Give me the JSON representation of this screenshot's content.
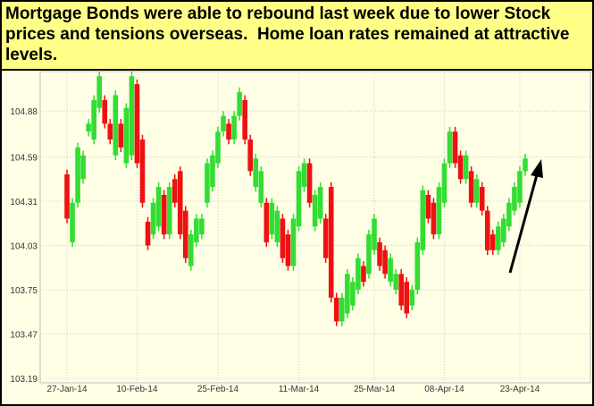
{
  "chart_data": {
    "type": "candlestick",
    "title": "Mortgage Bonds were able to rebound last week due to lower Stock prices and tensions overseas.  Home loan rates remained at attractive levels.",
    "categories": [
      "27-Jan-14",
      null,
      null,
      null,
      null,
      null,
      null,
      null,
      null,
      null,
      null,
      null,
      null,
      "10-Feb-14",
      null,
      null,
      null,
      null,
      null,
      null,
      null,
      null,
      null,
      null,
      null,
      null,
      null,
      null,
      "25-Feb-14",
      null,
      null,
      null,
      null,
      null,
      null,
      null,
      null,
      null,
      null,
      null,
      null,
      null,
      null,
      "11-Mar-14",
      null,
      null,
      null,
      null,
      null,
      null,
      null,
      null,
      null,
      null,
      null,
      null,
      null,
      "25-Mar-14",
      null,
      null,
      null,
      null,
      null,
      null,
      null,
      null,
      null,
      null,
      null,
      null,
      "08-Apr-14",
      null,
      null,
      null,
      null,
      null,
      null,
      null,
      null,
      null,
      null,
      null,
      null,
      null,
      "23-Apr-14",
      null
    ],
    "open": [
      104.48,
      104.05,
      104.3,
      104.45,
      104.75,
      104.7,
      104.9,
      104.95,
      104.8,
      104.6,
      104.8,
      104.55,
      104.6,
      105.05,
      104.7,
      104.18,
      104.1,
      104.15,
      104.35,
      104.1,
      104.45,
      104.5,
      104.25,
      103.9,
      104.05,
      104.1,
      104.3,
      104.4,
      104.55,
      104.75,
      104.8,
      104.7,
      104.85,
      104.95,
      104.7,
      104.4,
      104.3,
      104.3,
      104.1,
      104.05,
      104.2,
      104.1,
      103.9,
      104.15,
      104.4,
      104.55,
      104.15,
      104.2,
      104.2,
      104.4,
      103.7,
      103.55,
      103.6,
      103.65,
      103.75,
      103.9,
      103.85,
      104.0,
      104.05,
      104.0,
      103.8,
      103.75,
      103.85,
      103.8,
      103.65,
      103.75,
      104.0,
      104.35,
      104.3,
      104.1,
      104.3,
      104.55,
      104.75,
      104.6,
      104.45,
      104.5,
      104.3,
      104.4,
      104.25,
      104.1,
      104.0,
      104.05,
      104.15,
      104.25,
      104.3,
      104.5
    ],
    "high": [
      104.51,
      104.33,
      104.68,
      104.63,
      104.83,
      104.98,
      105.13,
      104.98,
      104.83,
      105.01,
      104.83,
      104.93,
      105.13,
      105.08,
      104.73,
      104.21,
      104.33,
      104.43,
      104.38,
      104.43,
      104.48,
      104.53,
      104.28,
      104.13,
      104.23,
      104.23,
      104.58,
      104.63,
      104.78,
      104.88,
      104.83,
      104.88,
      105.03,
      104.98,
      104.73,
      104.61,
      104.53,
      104.33,
      104.33,
      104.28,
      104.23,
      104.13,
      104.23,
      104.53,
      104.58,
      104.58,
      104.38,
      104.43,
      104.23,
      104.43,
      103.73,
      103.73,
      103.88,
      103.83,
      103.98,
      103.93,
      104.13,
      104.23,
      104.08,
      104.03,
      103.98,
      103.88,
      103.88,
      103.83,
      103.78,
      104.08,
      104.41,
      104.38,
      104.33,
      104.43,
      104.58,
      104.78,
      104.78,
      104.63,
      104.63,
      104.53,
      104.48,
      104.43,
      104.28,
      104.13,
      104.18,
      104.23,
      104.33,
      104.43,
      104.53,
      104.61
    ],
    "low": [
      104.17,
      104.02,
      104.27,
      104.42,
      104.72,
      104.67,
      104.87,
      104.77,
      104.67,
      104.57,
      104.62,
      104.52,
      104.57,
      104.52,
      104.27,
      104.0,
      104.07,
      104.12,
      104.07,
      104.07,
      104.27,
      104.07,
      103.92,
      103.87,
      104.02,
      104.07,
      104.27,
      104.37,
      104.52,
      104.72,
      104.67,
      104.67,
      104.82,
      104.67,
      104.47,
      104.37,
      104.27,
      104.02,
      104.07,
      104.02,
      103.92,
      103.87,
      103.87,
      104.12,
      104.37,
      104.27,
      104.12,
      104.17,
      103.92,
      103.67,
      103.52,
      103.52,
      103.57,
      103.62,
      103.72,
      103.77,
      103.82,
      103.97,
      103.87,
      103.82,
      103.77,
      103.72,
      103.62,
      103.57,
      103.62,
      103.72,
      103.97,
      104.17,
      104.07,
      104.07,
      104.27,
      104.52,
      104.52,
      104.42,
      104.42,
      104.27,
      104.27,
      104.22,
      103.97,
      103.97,
      103.97,
      104.02,
      104.12,
      104.22,
      104.27,
      104.47
    ],
    "close": [
      104.2,
      104.3,
      104.65,
      104.6,
      104.8,
      104.95,
      105.1,
      104.8,
      104.7,
      104.98,
      104.65,
      104.9,
      105.1,
      104.55,
      104.3,
      104.03,
      104.3,
      104.4,
      104.1,
      104.4,
      104.3,
      104.1,
      103.95,
      104.1,
      104.2,
      104.2,
      104.55,
      104.6,
      104.75,
      104.85,
      104.7,
      104.85,
      105.0,
      104.7,
      104.5,
      104.58,
      104.5,
      104.05,
      104.3,
      104.25,
      103.95,
      103.9,
      104.2,
      104.5,
      104.55,
      104.3,
      104.35,
      104.4,
      103.95,
      103.7,
      103.55,
      103.7,
      103.85,
      103.8,
      103.95,
      103.8,
      104.1,
      104.2,
      103.9,
      103.85,
      103.95,
      103.85,
      103.65,
      103.6,
      103.75,
      104.05,
      104.38,
      104.2,
      104.1,
      104.4,
      104.55,
      104.75,
      104.55,
      104.45,
      104.6,
      104.3,
      104.45,
      104.25,
      104.0,
      104.0,
      104.15,
      104.2,
      104.3,
      104.4,
      104.5,
      104.58
    ],
    "up_color": "#33dd33",
    "down_color": "#ee1111",
    "ylim": [
      103.19,
      105.13
    ],
    "yticks": [
      103.19,
      103.47,
      103.75,
      104.03,
      104.31,
      104.59,
      104.88
    ],
    "grid": true
  }
}
